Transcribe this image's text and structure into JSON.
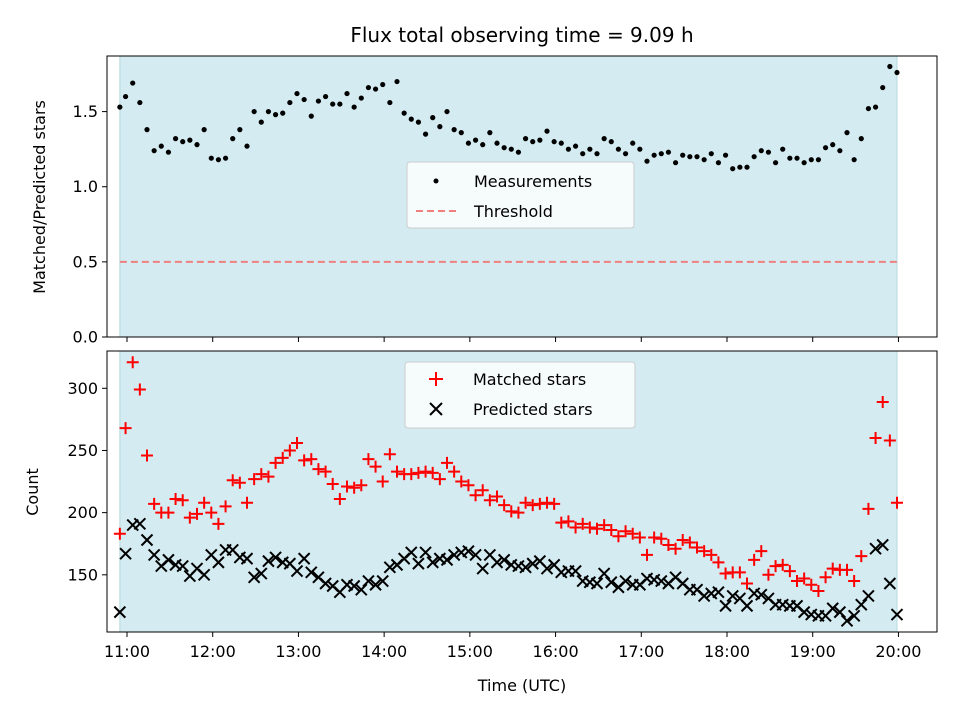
{
  "title": "Flux total observing time = 9.09 h",
  "colors": {
    "shade": "#d3ebf1",
    "measurement": "#000000",
    "threshold": "#f08080",
    "matched": "#ff0000",
    "predicted": "#000000"
  },
  "chart_data": [
    {
      "type": "scatter",
      "panel": "top",
      "ylabel": "Matched/Predicted stars",
      "ylim": [
        0,
        1.87
      ],
      "yticks": [
        0.0,
        0.5,
        1.0,
        1.5
      ],
      "ytick_labels": [
        "0.0",
        "0.5",
        "1.0",
        "1.5"
      ],
      "xlim": [
        "10:46",
        "20:27"
      ],
      "shaded_span": [
        "10:55",
        "19:59"
      ],
      "legend_position": "center",
      "threshold": {
        "name": "Threshold",
        "value": 0.5,
        "style": "dashed"
      },
      "series": [
        {
          "name": "Measurements",
          "marker": "dot",
          "x": [
            "10:55",
            "10:59",
            "11:04",
            "11:09",
            "11:14",
            "11:19",
            "11:24",
            "11:29",
            "11:34",
            "11:39",
            "11:44",
            "11:49",
            "11:54",
            "11:59",
            "12:04",
            "12:09",
            "12:14",
            "12:19",
            "12:24",
            "12:29",
            "12:34",
            "12:39",
            "12:44",
            "12:49",
            "12:54",
            "12:59",
            "13:04",
            "13:09",
            "13:14",
            "13:19",
            "13:24",
            "13:29",
            "13:34",
            "13:39",
            "13:44",
            "13:49",
            "13:54",
            "13:59",
            "14:04",
            "14:09",
            "14:14",
            "14:19",
            "14:24",
            "14:29",
            "14:34",
            "14:39",
            "14:44",
            "14:49",
            "14:54",
            "14:59",
            "15:04",
            "15:09",
            "15:14",
            "15:19",
            "15:24",
            "15:29",
            "15:34",
            "15:39",
            "15:44",
            "15:49",
            "15:54",
            "15:59",
            "16:04",
            "16:09",
            "16:14",
            "16:19",
            "16:24",
            "16:29",
            "16:34",
            "16:39",
            "16:44",
            "16:49",
            "16:54",
            "16:59",
            "17:04",
            "17:09",
            "17:14",
            "17:19",
            "17:24",
            "17:29",
            "17:34",
            "17:39",
            "17:44",
            "17:49",
            "17:54",
            "17:59",
            "18:04",
            "18:09",
            "18:14",
            "18:19",
            "18:24",
            "18:29",
            "18:34",
            "18:39",
            "18:44",
            "18:49",
            "18:54",
            "18:59",
            "19:04",
            "19:09",
            "19:14",
            "19:19",
            "19:24",
            "19:29",
            "19:34",
            "19:39",
            "19:44",
            "19:49",
            "19:54",
            "19:59"
          ],
          "y": [
            1.53,
            1.6,
            1.69,
            1.56,
            1.38,
            1.24,
            1.27,
            1.23,
            1.32,
            1.3,
            1.31,
            1.28,
            1.38,
            1.19,
            1.18,
            1.19,
            1.32,
            1.38,
            1.27,
            1.5,
            1.43,
            1.5,
            1.48,
            1.49,
            1.56,
            1.62,
            1.58,
            1.47,
            1.57,
            1.6,
            1.55,
            1.55,
            1.62,
            1.53,
            1.59,
            1.66,
            1.65,
            1.68,
            1.56,
            1.7,
            1.49,
            1.45,
            1.43,
            1.35,
            1.46,
            1.4,
            1.5,
            1.38,
            1.36,
            1.29,
            1.31,
            1.28,
            1.36,
            1.29,
            1.26,
            1.25,
            1.23,
            1.32,
            1.3,
            1.31,
            1.37,
            1.3,
            1.29,
            1.25,
            1.27,
            1.22,
            1.25,
            1.22,
            1.32,
            1.3,
            1.25,
            1.22,
            1.29,
            1.25,
            1.17,
            1.21,
            1.22,
            1.23,
            1.16,
            1.21,
            1.2,
            1.2,
            1.18,
            1.22,
            1.16,
            1.21,
            1.12,
            1.13,
            1.13,
            1.2,
            1.24,
            1.23,
            1.16,
            1.25,
            1.19,
            1.19,
            1.16,
            1.18,
            1.18,
            1.26,
            1.28,
            1.24,
            1.36,
            1.18,
            1.32,
            1.52,
            1.53,
            1.66,
            1.8,
            1.76
          ]
        }
      ]
    },
    {
      "type": "scatter",
      "panel": "bottom",
      "xlabel": "Time (UTC)",
      "ylabel": "Count",
      "ylim": [
        104,
        330
      ],
      "yticks": [
        150,
        200,
        250,
        300
      ],
      "ytick_labels": [
        "150",
        "200",
        "250",
        "300"
      ],
      "xlim": [
        "10:46",
        "20:27"
      ],
      "xticks": [
        "11:00",
        "12:00",
        "13:00",
        "14:00",
        "15:00",
        "16:00",
        "17:00",
        "18:00",
        "19:00",
        "20:00"
      ],
      "shaded_span": [
        "10:55",
        "19:59"
      ],
      "legend_position": "upper center",
      "series": [
        {
          "name": "Matched stars",
          "marker": "plus",
          "x": [
            "10:55",
            "10:59",
            "11:04",
            "11:09",
            "11:14",
            "11:19",
            "11:24",
            "11:29",
            "11:34",
            "11:39",
            "11:44",
            "11:49",
            "11:54",
            "11:59",
            "12:04",
            "12:09",
            "12:14",
            "12:19",
            "12:24",
            "12:29",
            "12:34",
            "12:39",
            "12:44",
            "12:49",
            "12:54",
            "12:59",
            "13:04",
            "13:09",
            "13:14",
            "13:19",
            "13:24",
            "13:29",
            "13:34",
            "13:39",
            "13:44",
            "13:49",
            "13:54",
            "13:59",
            "14:04",
            "14:09",
            "14:14",
            "14:19",
            "14:24",
            "14:29",
            "14:34",
            "14:39",
            "14:44",
            "14:49",
            "14:54",
            "14:59",
            "15:04",
            "15:09",
            "15:14",
            "15:19",
            "15:24",
            "15:29",
            "15:34",
            "15:39",
            "15:44",
            "15:49",
            "15:54",
            "15:59",
            "16:04",
            "16:09",
            "16:14",
            "16:19",
            "16:24",
            "16:29",
            "16:34",
            "16:39",
            "16:44",
            "16:49",
            "16:54",
            "16:59",
            "17:04",
            "17:09",
            "17:14",
            "17:19",
            "17:24",
            "17:29",
            "17:34",
            "17:39",
            "17:44",
            "17:49",
            "17:54",
            "17:59",
            "18:04",
            "18:09",
            "18:14",
            "18:19",
            "18:24",
            "18:29",
            "18:34",
            "18:39",
            "18:44",
            "18:49",
            "18:54",
            "18:59",
            "19:04",
            "19:09",
            "19:14",
            "19:19",
            "19:24",
            "19:29",
            "19:34",
            "19:39",
            "19:44",
            "19:49",
            "19:54",
            "19:59"
          ],
          "y": [
            183,
            268,
            321,
            299,
            246,
            207,
            200,
            200,
            211,
            210,
            196,
            199,
            208,
            200,
            191,
            205,
            226,
            224,
            208,
            227,
            231,
            229,
            240,
            244,
            250,
            256,
            242,
            243,
            235,
            233,
            223,
            211,
            221,
            220,
            222,
            243,
            237,
            225,
            247,
            233,
            231,
            231,
            232,
            233,
            232,
            227,
            240,
            233,
            225,
            222,
            214,
            218,
            210,
            213,
            206,
            201,
            200,
            208,
            206,
            207,
            208,
            207,
            192,
            193,
            188,
            191,
            188,
            187,
            190,
            186,
            181,
            185,
            183,
            180,
            166,
            180,
            179,
            174,
            171,
            178,
            176,
            172,
            169,
            166,
            160,
            151,
            152,
            152,
            143,
            162,
            169,
            150,
            157,
            158,
            153,
            145,
            147,
            142,
            137,
            148,
            155,
            154,
            154,
            145,
            165,
            203,
            260,
            289,
            258,
            208
          ]
        },
        {
          "name": "Predicted stars",
          "marker": "x",
          "x": [
            "10:55",
            "10:59",
            "11:04",
            "11:09",
            "11:14",
            "11:19",
            "11:24",
            "11:29",
            "11:34",
            "11:39",
            "11:44",
            "11:49",
            "11:54",
            "11:59",
            "12:04",
            "12:09",
            "12:14",
            "12:19",
            "12:24",
            "12:29",
            "12:34",
            "12:39",
            "12:44",
            "12:49",
            "12:54",
            "12:59",
            "13:04",
            "13:09",
            "13:14",
            "13:19",
            "13:24",
            "13:29",
            "13:34",
            "13:39",
            "13:44",
            "13:49",
            "13:54",
            "13:59",
            "14:04",
            "14:09",
            "14:14",
            "14:19",
            "14:24",
            "14:29",
            "14:34",
            "14:39",
            "14:44",
            "14:49",
            "14:54",
            "14:59",
            "15:04",
            "15:09",
            "15:14",
            "15:19",
            "15:24",
            "15:29",
            "15:34",
            "15:39",
            "15:44",
            "15:49",
            "15:54",
            "15:59",
            "16:04",
            "16:09",
            "16:14",
            "16:19",
            "16:24",
            "16:29",
            "16:34",
            "16:39",
            "16:44",
            "16:49",
            "16:54",
            "16:59",
            "17:04",
            "17:09",
            "17:14",
            "17:19",
            "17:24",
            "17:29",
            "17:34",
            "17:39",
            "17:44",
            "17:49",
            "17:54",
            "17:59",
            "18:04",
            "18:09",
            "18:14",
            "18:19",
            "18:24",
            "18:29",
            "18:34",
            "18:39",
            "18:44",
            "18:49",
            "18:54",
            "18:59",
            "19:04",
            "19:09",
            "19:14",
            "19:19",
            "19:24",
            "19:29",
            "19:34",
            "19:39",
            "19:44",
            "19:49",
            "19:54",
            "19:59"
          ],
          "y": [
            120,
            167,
            190,
            191,
            178,
            166,
            157,
            162,
            158,
            157,
            149,
            155,
            150,
            166,
            160,
            170,
            170,
            164,
            163,
            148,
            151,
            161,
            164,
            160,
            159,
            153,
            163,
            152,
            148,
            143,
            141,
            136,
            142,
            141,
            138,
            145,
            142,
            145,
            156,
            158,
            163,
            168,
            159,
            168,
            160,
            163,
            162,
            166,
            168,
            169,
            166,
            155,
            166,
            160,
            162,
            158,
            157,
            156,
            159,
            161,
            155,
            158,
            152,
            153,
            153,
            145,
            144,
            143,
            151,
            144,
            140,
            145,
            142,
            142,
            147,
            146,
            145,
            143,
            148,
            143,
            138,
            138,
            133,
            135,
            136,
            125,
            133,
            131,
            125,
            135,
            134,
            131,
            126,
            126,
            125,
            125,
            120,
            118,
            117,
            117,
            123,
            120,
            113,
            117,
            126,
            133,
            171,
            174,
            143,
            118
          ]
        }
      ]
    }
  ]
}
